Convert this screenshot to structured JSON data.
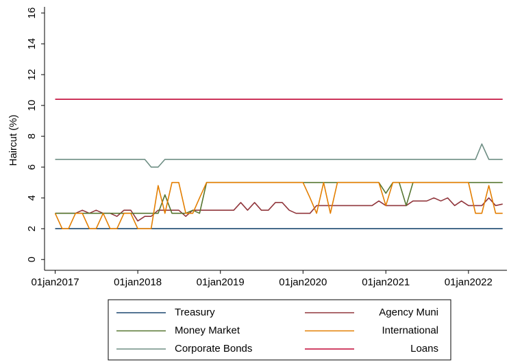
{
  "chart_data": {
    "type": "line",
    "y_label": "Haircut (%)",
    "x": [
      "2017-01-01",
      "2017-02-01",
      "2017-03-01",
      "2017-04-01",
      "2017-05-01",
      "2017-06-01",
      "2017-07-01",
      "2017-08-01",
      "2017-09-01",
      "2017-10-01",
      "2017-11-01",
      "2017-12-01",
      "2018-01-01",
      "2018-02-01",
      "2018-03-01",
      "2018-04-01",
      "2018-05-01",
      "2018-06-01",
      "2018-07-01",
      "2018-08-01",
      "2018-09-01",
      "2018-10-01",
      "2018-11-01",
      "2018-12-01",
      "2019-01-01",
      "2019-02-01",
      "2019-03-01",
      "2019-04-01",
      "2019-05-01",
      "2019-06-01",
      "2019-07-01",
      "2019-08-01",
      "2019-09-01",
      "2019-10-01",
      "2019-11-01",
      "2019-12-01",
      "2020-01-01",
      "2020-02-01",
      "2020-03-01",
      "2020-04-01",
      "2020-05-01",
      "2020-06-01",
      "2020-07-01",
      "2020-08-01",
      "2020-09-01",
      "2020-10-01",
      "2020-11-01",
      "2020-12-01",
      "2021-01-01",
      "2021-02-01",
      "2021-03-01",
      "2021-04-01",
      "2021-05-01",
      "2021-06-01",
      "2021-07-01",
      "2021-08-01",
      "2021-09-01",
      "2021-10-01",
      "2021-11-01",
      "2021-12-01",
      "2022-01-01",
      "2022-02-01",
      "2022-03-01",
      "2022-04-01",
      "2022-05-01",
      "2022-06-01"
    ],
    "xlim": [
      "2016-11-15",
      "2022-06-20"
    ],
    "xticks": [
      {
        "value": "2017-01-01",
        "label": "01jan2017"
      },
      {
        "value": "2018-01-01",
        "label": "01jan2018"
      },
      {
        "value": "2019-01-01",
        "label": "01jan2019"
      },
      {
        "value": "2020-01-01",
        "label": "01jan2020"
      },
      {
        "value": "2021-01-01",
        "label": "01jan2021"
      },
      {
        "value": "2022-01-01",
        "label": "01jan2022"
      }
    ],
    "ylim": [
      -0.7,
      16.4
    ],
    "yticks": [
      0,
      2,
      4,
      6,
      8,
      10,
      12,
      14,
      16
    ],
    "grid": false,
    "legend": "bottom",
    "series": [
      {
        "name": "Treasury",
        "color": "#1a476f",
        "values": [
          2,
          2,
          2,
          2,
          2,
          2,
          2,
          2,
          2,
          2,
          2,
          2,
          2,
          2,
          2,
          2,
          2,
          2,
          2,
          2,
          2,
          2,
          2,
          2,
          2,
          2,
          2,
          2,
          2,
          2,
          2,
          2,
          2,
          2,
          2,
          2,
          2,
          2,
          2,
          2,
          2,
          2,
          2,
          2,
          2,
          2,
          2,
          2,
          2,
          2,
          2,
          2,
          2,
          2,
          2,
          2,
          2,
          2,
          2,
          2,
          2,
          2,
          2,
          2,
          2,
          2
        ]
      },
      {
        "name": "Agency Muni",
        "color": "#90353b",
        "values": [
          3,
          3,
          3,
          3,
          3.2,
          3,
          3.2,
          3,
          3,
          2.8,
          3.2,
          3.2,
          2.5,
          2.8,
          2.8,
          3.2,
          3.2,
          3.2,
          3.2,
          2.8,
          3.2,
          3.2,
          3.2,
          3.2,
          3.2,
          3.2,
          3.2,
          3.7,
          3.2,
          3.7,
          3.2,
          3.2,
          3.7,
          3.7,
          3.2,
          3,
          3,
          3,
          3.5,
          3.5,
          3.5,
          3.5,
          3.5,
          3.5,
          3.5,
          3.5,
          3.5,
          3.8,
          3.5,
          3.5,
          3.5,
          3.5,
          3.8,
          3.8,
          3.8,
          4,
          3.8,
          4,
          3.5,
          3.8,
          3.5,
          3.5,
          3.5,
          4,
          3.5,
          3.6
        ]
      },
      {
        "name": "Money Market",
        "color": "#55752f",
        "values": [
          3,
          3,
          3,
          3,
          3,
          3,
          3,
          3,
          3,
          3,
          3,
          3,
          3,
          3,
          3,
          3,
          4.2,
          3,
          3,
          3,
          3.2,
          3,
          5,
          5,
          5,
          5,
          5,
          5,
          5,
          5,
          5,
          5,
          5,
          5,
          5,
          5,
          5,
          5,
          5,
          5,
          5,
          5,
          5,
          5,
          5,
          5,
          5,
          5,
          4.3,
          5,
          5,
          3.5,
          5,
          5,
          5,
          5,
          5,
          5,
          5,
          5,
          5,
          5,
          5,
          5,
          5,
          5
        ]
      },
      {
        "name": "International",
        "color": "#e37e00",
        "values": [
          3,
          2,
          2,
          3,
          3,
          2,
          2,
          3,
          2,
          2,
          3,
          3,
          2,
          2,
          2,
          4.8,
          3,
          5,
          5,
          3,
          3,
          4,
          5,
          5,
          5,
          5,
          5,
          5,
          5,
          5,
          5,
          5,
          5,
          5,
          5,
          5,
          5,
          4,
          3,
          5,
          3,
          5,
          5,
          5,
          5,
          5,
          5,
          5,
          3.5,
          5,
          5,
          5,
          5,
          5,
          5,
          5,
          5,
          5,
          5,
          5,
          5,
          3,
          3,
          4.8,
          3,
          3
        ]
      },
      {
        "name": "Corporate Bonds",
        "color": "#6e8e84",
        "values": [
          6.5,
          6.5,
          6.5,
          6.5,
          6.5,
          6.5,
          6.5,
          6.5,
          6.5,
          6.5,
          6.5,
          6.5,
          6.5,
          6.5,
          6,
          6,
          6.5,
          6.5,
          6.5,
          6.5,
          6.5,
          6.5,
          6.5,
          6.5,
          6.5,
          6.5,
          6.5,
          6.5,
          6.5,
          6.5,
          6.5,
          6.5,
          6.5,
          6.5,
          6.5,
          6.5,
          6.5,
          6.5,
          6.5,
          6.5,
          6.5,
          6.5,
          6.5,
          6.5,
          6.5,
          6.5,
          6.5,
          6.5,
          6.5,
          6.5,
          6.5,
          6.5,
          6.5,
          6.5,
          6.5,
          6.5,
          6.5,
          6.5,
          6.5,
          6.5,
          6.5,
          6.5,
          7.5,
          6.5,
          6.5,
          6.5
        ]
      },
      {
        "name": "Loans",
        "color": "#c10534",
        "values": [
          10.4,
          10.4,
          10.4,
          10.4,
          10.4,
          10.4,
          10.4,
          10.4,
          10.4,
          10.4,
          10.4,
          10.4,
          10.4,
          10.4,
          10.4,
          10.4,
          10.4,
          10.4,
          10.4,
          10.4,
          10.4,
          10.4,
          10.4,
          10.4,
          10.4,
          10.4,
          10.4,
          10.4,
          10.4,
          10.4,
          10.4,
          10.4,
          10.4,
          10.4,
          10.4,
          10.4,
          10.4,
          10.4,
          10.4,
          10.4,
          10.4,
          10.4,
          10.4,
          10.4,
          10.4,
          10.4,
          10.4,
          10.4,
          10.4,
          10.4,
          10.4,
          10.4,
          10.4,
          10.4,
          10.4,
          10.4,
          10.4,
          10.4,
          10.4,
          10.4,
          10.4,
          10.4,
          10.4,
          10.4,
          10.4,
          10.4
        ]
      }
    ]
  }
}
